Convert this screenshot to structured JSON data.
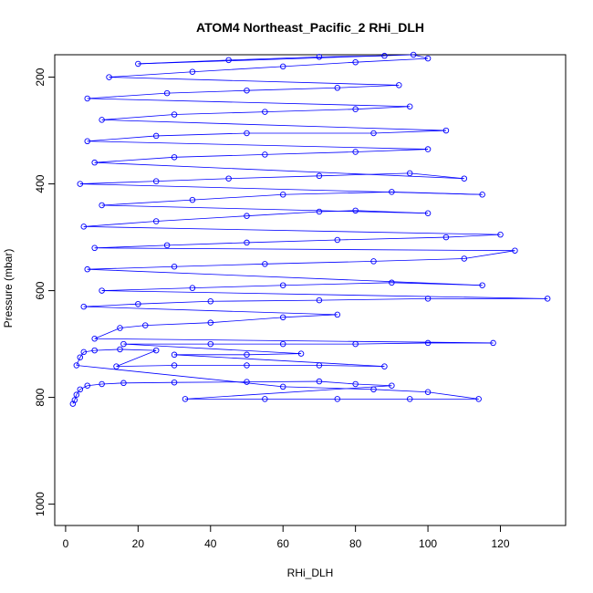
{
  "chart_data": {
    "type": "scatter",
    "title": "ATOM4 Northeast_Pacific_2 RHi_DLH",
    "xlabel": "RHi_DLH",
    "ylabel": "Pressure (mbar)",
    "xlim": [
      -3,
      138
    ],
    "ylim": [
      1040,
      158
    ],
    "y_reversed": true,
    "x_ticks": [
      0,
      20,
      40,
      60,
      80,
      100,
      120
    ],
    "y_ticks": [
      200,
      400,
      600,
      800,
      1000
    ],
    "series_color": "#0000ff",
    "marker": "open-circle",
    "connected": true,
    "series": [
      {
        "points": [
          [
            2,
            812
          ],
          [
            2.5,
            805
          ],
          [
            3,
            795
          ],
          [
            4,
            785
          ],
          [
            6,
            778
          ],
          [
            10,
            775
          ],
          [
            16,
            773
          ],
          [
            30,
            772
          ],
          [
            50,
            771
          ],
          [
            70,
            770
          ],
          [
            80,
            775
          ],
          [
            90,
            778
          ],
          [
            33,
            803
          ],
          [
            55,
            803
          ],
          [
            75,
            803
          ],
          [
            95,
            803
          ],
          [
            114,
            803
          ],
          [
            100,
            790
          ],
          [
            85,
            785
          ],
          [
            60,
            780
          ],
          [
            3,
            740
          ],
          [
            4,
            725
          ],
          [
            5,
            715
          ],
          [
            8,
            712
          ],
          [
            15,
            710
          ],
          [
            25,
            712
          ],
          [
            14,
            742
          ],
          [
            30,
            740
          ],
          [
            50,
            740
          ],
          [
            70,
            740
          ],
          [
            88,
            742
          ],
          [
            30,
            720
          ],
          [
            50,
            720
          ],
          [
            65,
            718
          ],
          [
            16,
            700
          ],
          [
            40,
            700
          ],
          [
            60,
            700
          ],
          [
            80,
            700
          ],
          [
            100,
            698
          ],
          [
            118,
            698
          ],
          [
            8,
            690
          ],
          [
            15,
            670
          ],
          [
            22,
            665
          ],
          [
            40,
            660
          ],
          [
            60,
            650
          ],
          [
            75,
            645
          ],
          [
            5,
            630
          ],
          [
            20,
            625
          ],
          [
            40,
            620
          ],
          [
            70,
            618
          ],
          [
            100,
            615
          ],
          [
            133,
            615
          ],
          [
            10,
            600
          ],
          [
            35,
            595
          ],
          [
            60,
            590
          ],
          [
            90,
            585
          ],
          [
            115,
            590
          ],
          [
            6,
            560
          ],
          [
            30,
            555
          ],
          [
            55,
            550
          ],
          [
            85,
            545
          ],
          [
            110,
            540
          ],
          [
            124,
            525
          ],
          [
            8,
            520
          ],
          [
            28,
            515
          ],
          [
            50,
            510
          ],
          [
            75,
            505
          ],
          [
            105,
            500
          ],
          [
            120,
            495
          ],
          [
            5,
            480
          ],
          [
            25,
            470
          ],
          [
            50,
            460
          ],
          [
            70,
            452
          ],
          [
            80,
            450
          ],
          [
            100,
            455
          ],
          [
            10,
            440
          ],
          [
            35,
            430
          ],
          [
            60,
            420
          ],
          [
            90,
            415
          ],
          [
            115,
            420
          ],
          [
            4,
            400
          ],
          [
            25,
            395
          ],
          [
            45,
            390
          ],
          [
            70,
            385
          ],
          [
            95,
            380
          ],
          [
            110,
            390
          ],
          [
            8,
            360
          ],
          [
            30,
            350
          ],
          [
            55,
            345
          ],
          [
            80,
            340
          ],
          [
            100,
            335
          ],
          [
            6,
            320
          ],
          [
            25,
            310
          ],
          [
            50,
            305
          ],
          [
            85,
            305
          ],
          [
            105,
            300
          ],
          [
            10,
            280
          ],
          [
            30,
            270
          ],
          [
            55,
            265
          ],
          [
            80,
            260
          ],
          [
            95,
            255
          ],
          [
            6,
            240
          ],
          [
            28,
            230
          ],
          [
            50,
            225
          ],
          [
            75,
            220
          ],
          [
            92,
            215
          ],
          [
            12,
            200
          ],
          [
            35,
            190
          ],
          [
            60,
            180
          ],
          [
            80,
            172
          ],
          [
            100,
            165
          ],
          [
            96,
            158
          ],
          [
            20,
            175
          ],
          [
            45,
            168
          ],
          [
            70,
            162
          ],
          [
            88,
            160
          ]
        ]
      }
    ]
  }
}
